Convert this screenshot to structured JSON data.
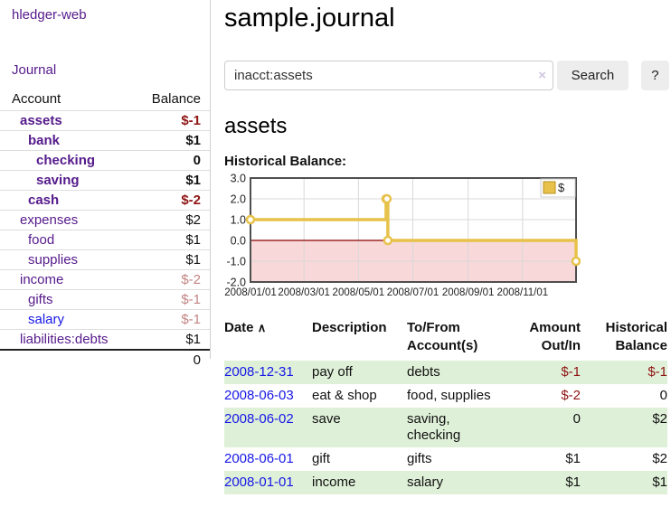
{
  "brand": {
    "label": "hledger-web"
  },
  "nav": {
    "journal_label": "Journal"
  },
  "sidebar": {
    "account_header": "Account",
    "balance_header": "Balance",
    "accounts": [
      {
        "name": "assets",
        "balance": "$-1",
        "level": 1,
        "bold": true,
        "balance_style": "neg-strong"
      },
      {
        "name": "bank",
        "balance": "$1",
        "level": 2,
        "bold": true,
        "balance_style": "plain"
      },
      {
        "name": "checking",
        "balance": "0",
        "level": 3,
        "bold": true,
        "balance_style": "plain"
      },
      {
        "name": "saving",
        "balance": "$1",
        "level": 3,
        "bold": true,
        "balance_style": "plain"
      },
      {
        "name": "cash",
        "balance": "$-2",
        "level": 2,
        "bold": true,
        "balance_style": "neg-strong"
      },
      {
        "name": "expenses",
        "balance": "$2",
        "level": 1,
        "bold": false,
        "balance_style": "plain"
      },
      {
        "name": "food",
        "balance": "$1",
        "level": 2,
        "bold": false,
        "balance_style": "plain"
      },
      {
        "name": "supplies",
        "balance": "$1",
        "level": 2,
        "bold": false,
        "balance_style": "plain"
      },
      {
        "name": "income",
        "balance": "$-2",
        "level": 1,
        "bold": false,
        "balance_style": "neg-faded"
      },
      {
        "name": "gifts",
        "balance": "$-1",
        "level": 2,
        "bold": false,
        "balance_style": "neg-faded"
      },
      {
        "name": "salary",
        "balance": "$-1",
        "level": 2,
        "bold": false,
        "balance_style": "neg-faded",
        "link_style": "blue"
      },
      {
        "name": "liabilities:debts",
        "balance": "$1",
        "level": 1,
        "bold": false,
        "balance_style": "plain"
      }
    ],
    "total": "0"
  },
  "main": {
    "title": "sample.journal",
    "account_title": "assets",
    "chart_label": "Historical Balance:"
  },
  "search": {
    "value": "inacct:assets",
    "clear_icon": "×",
    "search_button": "Search",
    "help_button": "?"
  },
  "chart_data": {
    "type": "line",
    "style": "step-after",
    "title": "Historical Balance:",
    "series": [
      {
        "name": "$",
        "color": "#e7c24a",
        "points": [
          [
            "2008-01-01",
            1
          ],
          [
            "2008-06-01",
            2
          ],
          [
            "2008-06-02",
            2
          ],
          [
            "2008-06-03",
            0
          ],
          [
            "2008-12-31",
            -1
          ]
        ]
      }
    ],
    "ylim": [
      -2,
      3
    ],
    "yticks": [
      "3.0",
      "2.0",
      "1.0",
      "0.0",
      "-1.0",
      "-2.0"
    ],
    "xticks": [
      "2008/01/01",
      "2008/03/01",
      "2008/05/01",
      "2008/07/01",
      "2008/09/01",
      "2008/11/01"
    ],
    "x_start": "2008-01-01",
    "x_end": "2008-12-31",
    "grid": true,
    "legend": "$",
    "legend_position": "top-right",
    "negative_region_color": "#f8d8d8",
    "zero_line_color": "#8b0000"
  },
  "register": {
    "columns": [
      "Date",
      "Description",
      "To/From Account(s)",
      "Amount Out/In",
      "Historical Balance"
    ],
    "sort_column": "Date",
    "sort_icon": "∧",
    "rows": [
      {
        "date": "2008-12-31",
        "description": "pay off",
        "accounts": "debts",
        "amount": "$-1",
        "balance": "$-1"
      },
      {
        "date": "2008-06-03",
        "description": "eat & shop",
        "accounts": "food, supplies",
        "amount": "$-2",
        "balance": "0"
      },
      {
        "date": "2008-06-02",
        "description": "save",
        "accounts": "saving, checking",
        "amount": "0",
        "balance": "$2"
      },
      {
        "date": "2008-06-01",
        "description": "gift",
        "accounts": "gifts",
        "amount": "$1",
        "balance": "$2"
      },
      {
        "date": "2008-01-01",
        "description": "income",
        "accounts": "salary",
        "amount": "$1",
        "balance": "$1"
      }
    ]
  },
  "colors": {
    "link_purple": "#551a8b",
    "link_blue": "#1717e6",
    "negative_strong": "#8f1414",
    "negative_faded": "#c28484",
    "row_green": "#dff0d8",
    "chart_gold": "#e7c24a"
  }
}
